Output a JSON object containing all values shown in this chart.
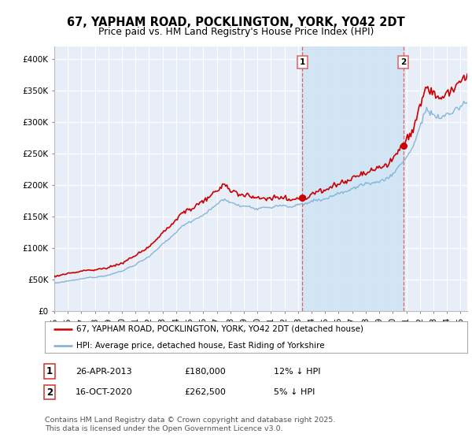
{
  "title_line1": "67, YAPHAM ROAD, POCKLINGTON, YORK, YO42 2DT",
  "title_line2": "Price paid vs. HM Land Registry's House Price Index (HPI)",
  "ylabel_ticks": [
    "£0",
    "£50K",
    "£100K",
    "£150K",
    "£200K",
    "£250K",
    "£300K",
    "£350K",
    "£400K"
  ],
  "ytick_vals": [
    0,
    50000,
    100000,
    150000,
    200000,
    250000,
    300000,
    350000,
    400000
  ],
  "ylim": [
    0,
    420000
  ],
  "xlim_start": 1995.0,
  "xlim_end": 2025.5,
  "background_color": "#ffffff",
  "plot_bg_color": "#e8eef8",
  "grid_color": "#ffffff",
  "hpi_color": "#7ab0d4",
  "price_color": "#cc0000",
  "vline_color": "#e06060",
  "shade_color": "#d0e4f5",
  "sale1_date": 2013.32,
  "sale1_price": 180000,
  "sale1_label": "1",
  "sale2_date": 2020.79,
  "sale2_price": 262500,
  "sale2_label": "2",
  "legend_line1": "67, YAPHAM ROAD, POCKLINGTON, YORK, YO42 2DT (detached house)",
  "legend_line2": "HPI: Average price, detached house, East Riding of Yorkshire",
  "table_row1": [
    "1",
    "26-APR-2013",
    "£180,000",
    "12% ↓ HPI"
  ],
  "table_row2": [
    "2",
    "16-OCT-2020",
    "£262,500",
    "5% ↓ HPI"
  ],
  "footnote": "Contains HM Land Registry data © Crown copyright and database right 2025.\nThis data is licensed under the Open Government Licence v3.0.",
  "title_fontsize": 10.5,
  "tick_fontsize": 7.5,
  "legend_fontsize": 7.5,
  "table_fontsize": 8
}
